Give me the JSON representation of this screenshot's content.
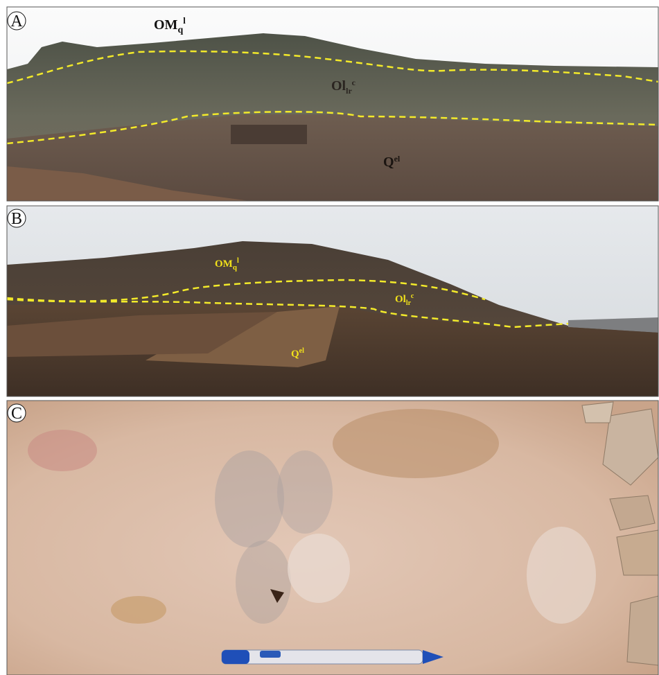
{
  "panels": [
    {
      "letter": "A",
      "labels": [
        {
          "base": "OM",
          "sub": "q",
          "sup": "l"
        },
        {
          "base": "Ol",
          "sub": "lr",
          "sup": "c"
        },
        {
          "base": "Q",
          "sup": "el"
        }
      ]
    },
    {
      "letter": "B",
      "labels": [
        {
          "base": "OM",
          "sub": "q",
          "sup": "l"
        },
        {
          "base": "Ol",
          "sub": "lr",
          "sup": "c"
        },
        {
          "base": "Q",
          "sup": "el"
        }
      ]
    },
    {
      "letter": "C"
    }
  ]
}
